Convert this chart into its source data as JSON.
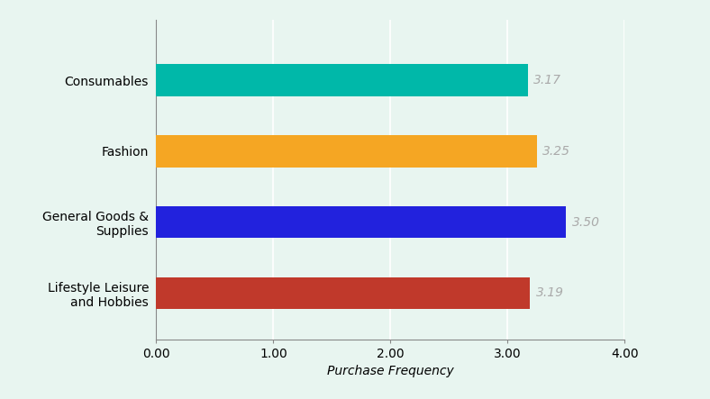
{
  "categories": [
    "Consumables",
    "Fashion",
    "General Goods &\nSupplies",
    "Lifestyle Leisure\nand Hobbies"
  ],
  "values": [
    3.17,
    3.25,
    3.5,
    3.19
  ],
  "bar_colors": [
    "#00B8A9",
    "#F5A623",
    "#2222DD",
    "#C0392B"
  ],
  "xlabel": "Purchase Frequency",
  "xlim": [
    0,
    4.0
  ],
  "xticks": [
    0.0,
    1.0,
    2.0,
    3.0,
    4.0
  ],
  "xtick_labels": [
    "0.00",
    "1.00",
    "2.00",
    "3.00",
    "4.00"
  ],
  "background_color": "#E8F5F0",
  "bar_height": 0.45,
  "value_label_color": "#aaaaaa",
  "value_label_fontsize": 10,
  "xlabel_fontsize": 10,
  "ytick_fontsize": 10,
  "xtick_fontsize": 10,
  "grid_color": "#ffffff",
  "grid_linewidth": 1.2,
  "spine_color": "#888888"
}
